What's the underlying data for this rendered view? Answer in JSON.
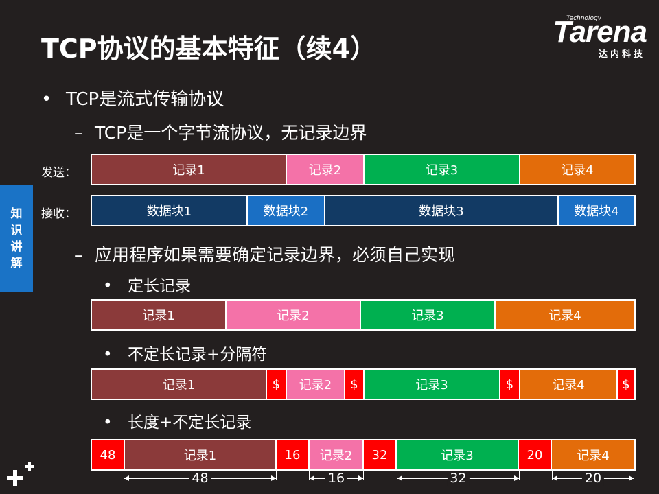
{
  "title": "TCP协议的基本特征（续4）",
  "logo": {
    "tech": "Technology",
    "word": "Tarena",
    "sub": "达内科技"
  },
  "side_tab": [
    "知",
    "识",
    "讲",
    "解"
  ],
  "bullet1": {
    "mark": "•",
    "text": "TCP是流式传输协议"
  },
  "sub1": {
    "mark": "–",
    "text": "TCP是一个字节流协议，无记录边界"
  },
  "send_label": "发送：",
  "recv_label": "接收：",
  "send_row": [
    "记录1",
    "记录2",
    "记录3",
    "记录4"
  ],
  "recv_row": [
    "数据块1",
    "数据块2",
    "数据块3",
    "数据块4"
  ],
  "sub2": {
    "mark": "–",
    "text": "应用程序如果需要确定记录边界，必须自己实现"
  },
  "fixed": {
    "mark": "•",
    "text": "定长记录",
    "row": [
      "记录1",
      "记录2",
      "记录3",
      "记录4"
    ]
  },
  "delim": {
    "mark": "•",
    "text": "不定长记录+分隔符",
    "row": [
      "记录1",
      "$",
      "记录2",
      "$",
      "记录3",
      "$",
      "记录4",
      "$"
    ]
  },
  "lenpref": {
    "mark": "•",
    "text": "长度+不定长记录",
    "row": [
      "48",
      "记录1",
      "16",
      "记录2",
      "32",
      "记录3",
      "20",
      "记录4"
    ]
  },
  "dims": [
    "48",
    "16",
    "32",
    "20"
  ],
  "colors": {
    "background": "#231f1f",
    "brown": "#8b3a3a",
    "pink": "#f472a8",
    "green": "#00b050",
    "orange": "#e36c0a",
    "navy": "#123a64",
    "blue": "#1a6fc4",
    "red": "#ff0000",
    "side_tab": "#1a73c6"
  },
  "icons": {
    "corner": "plus-icon"
  }
}
